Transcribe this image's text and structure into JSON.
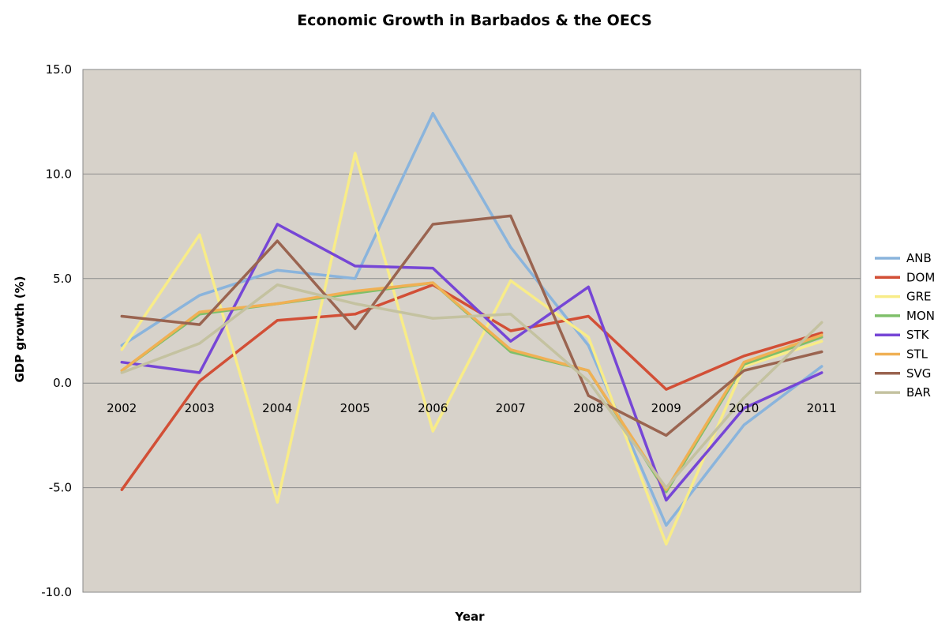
{
  "chart_data": {
    "type": "line",
    "title": "Economic Growth in Barbados & the OECS",
    "xlabel": "Year",
    "ylabel": "GDP growth (%)",
    "x": [
      "2002",
      "2003",
      "2004",
      "2005",
      "2006",
      "2007",
      "2008",
      "2009",
      "2010",
      "2011"
    ],
    "ylim": [
      -10,
      15
    ],
    "yticks": [
      "15.0",
      "10.0",
      "5.0",
      "0.0",
      "-5.0",
      "-10.0"
    ],
    "grid": true,
    "legend": "right",
    "plot_background": "#d7d2ca",
    "series": [
      {
        "name": "ANB",
        "color": "#8ab4dc",
        "values": [
          1.8,
          4.2,
          5.4,
          5.0,
          12.9,
          6.5,
          1.8,
          -6.8,
          -2.0,
          0.8
        ]
      },
      {
        "name": "DOM",
        "color": "#d24f36",
        "values": [
          -5.1,
          0.1,
          3.0,
          3.3,
          4.7,
          2.5,
          3.2,
          -0.3,
          1.3,
          2.4
        ]
      },
      {
        "name": "GRE",
        "color": "#f8ec88",
        "values": [
          1.6,
          7.1,
          -5.7,
          11.0,
          -2.3,
          4.9,
          2.2,
          -7.7,
          0.8,
          2.0
        ]
      },
      {
        "name": "MON",
        "color": "#7fbf6a",
        "values": [
          0.6,
          3.3,
          3.8,
          4.3,
          4.8,
          1.5,
          0.6,
          -5.2,
          0.9,
          2.2
        ]
      },
      {
        "name": "STK",
        "color": "#7646d6",
        "values": [
          1.0,
          0.5,
          7.6,
          5.6,
          5.5,
          2.0,
          4.6,
          -5.6,
          -1.2,
          0.5
        ]
      },
      {
        "name": "STL",
        "color": "#f0b054",
        "values": [
          0.6,
          3.4,
          3.8,
          4.4,
          4.8,
          1.6,
          0.6,
          -5.1,
          1.0,
          2.3
        ]
      },
      {
        "name": "SVG",
        "color": "#9a6450",
        "values": [
          3.2,
          2.8,
          6.8,
          2.6,
          7.6,
          8.0,
          -0.6,
          -2.5,
          0.6,
          1.5
        ]
      },
      {
        "name": "BAR",
        "color": "#c4c2a0",
        "values": [
          0.5,
          1.9,
          4.7,
          3.8,
          3.1,
          3.3,
          0.1,
          -5.0,
          -0.7,
          2.9
        ]
      }
    ]
  }
}
